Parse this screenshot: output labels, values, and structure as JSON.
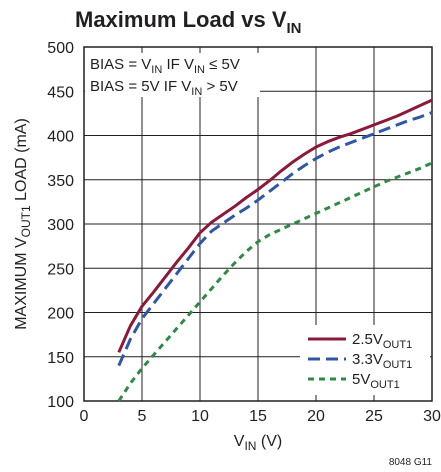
{
  "chart_data": {
    "type": "line",
    "title": {
      "main": "Maximum Load vs V",
      "sub": "IN"
    },
    "xlabel": {
      "main": "V",
      "sub": "IN",
      "suffix": " (V)"
    },
    "ylabel": {
      "pre": "MAXIMUM V",
      "sub": "OUT1",
      "post": " LOAD (mA)"
    },
    "xlim": [
      0,
      30
    ],
    "ylim": [
      100,
      500
    ],
    "xticks": [
      "0",
      "5",
      "10",
      "15",
      "20",
      "25",
      "30"
    ],
    "yticks": [
      "100",
      "150",
      "200",
      "250",
      "300",
      "350",
      "400",
      "450",
      "500"
    ],
    "grid": true,
    "legend_position": "bottom-right",
    "annotation": {
      "line1": {
        "a": "BIAS = V",
        "a_sub": "IN",
        "b": " IF V",
        "b_sub": "IN",
        "c": " ≤ 5V"
      },
      "line2": {
        "a": "BIAS = 5V IF V",
        "a_sub": "IN",
        "b": " > 5V"
      }
    },
    "series": [
      {
        "name": {
          "main": "2.5V",
          "sub": "OUT1"
        },
        "color": "#8b1a3a",
        "dash": "solid",
        "x": [
          3,
          4,
          5,
          6,
          7,
          8,
          9,
          10,
          11,
          12,
          13,
          14,
          15,
          16,
          17,
          18,
          19,
          20,
          21,
          22,
          23,
          24,
          25,
          26,
          27,
          28,
          29,
          30
        ],
        "y": [
          155,
          185,
          207,
          223,
          240,
          257,
          273,
          290,
          302,
          311,
          320,
          330,
          339,
          349,
          360,
          370,
          379,
          387,
          393,
          398,
          402,
          407,
          412,
          417,
          422,
          428,
          434,
          440
        ]
      },
      {
        "name": {
          "main": "3.3V",
          "sub": "OUT1"
        },
        "color": "#2f57a8",
        "dash": "dashed",
        "x": [
          3,
          4,
          5,
          6,
          7,
          8,
          9,
          10,
          11,
          12,
          13,
          14,
          15,
          16,
          17,
          18,
          19,
          20,
          21,
          22,
          23,
          24,
          25,
          26,
          27,
          28,
          29,
          30
        ],
        "y": [
          140,
          170,
          193,
          210,
          227,
          244,
          261,
          278,
          292,
          301,
          310,
          318,
          327,
          337,
          347,
          357,
          366,
          374,
          381,
          387,
          392,
          397,
          402,
          407,
          412,
          417,
          421,
          426
        ]
      },
      {
        "name": {
          "main": "5V",
          "sub": "OUT1"
        },
        "color": "#2e8a45",
        "dash": "dashed",
        "x": [
          3,
          4,
          5,
          6,
          7,
          8,
          9,
          10,
          11,
          12,
          13,
          14,
          15,
          16,
          17,
          18,
          19,
          20,
          21,
          22,
          23,
          24,
          25,
          26,
          27,
          28,
          29,
          30
        ],
        "y": [
          100,
          120,
          137,
          152,
          167,
          182,
          197,
          212,
          227,
          242,
          256,
          269,
          280,
          288,
          294,
          300,
          306,
          312,
          318,
          324,
          330,
          336,
          342,
          348,
          353,
          358,
          363,
          369
        ]
      }
    ]
  },
  "figure_id": "8048 G11"
}
